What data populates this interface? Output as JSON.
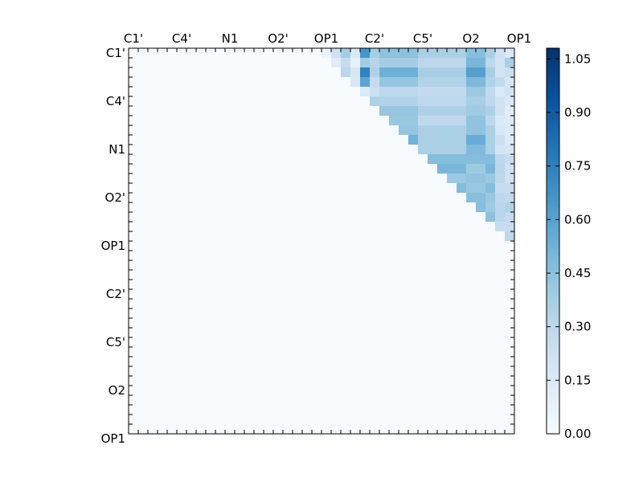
{
  "chart_data": {
    "type": "heatmap",
    "title": "",
    "xlabel": "",
    "ylabel": "",
    "n": 40,
    "tick_every": 5,
    "x_tick_labels": [
      "C1'",
      "C4'",
      "N1",
      "O2'",
      "OP1",
      "C2'",
      "C5'",
      "O2",
      "OP1"
    ],
    "y_tick_labels": [
      "C1'",
      "C4'",
      "N1",
      "O2'",
      "OP1",
      "C2'",
      "C5'",
      "O2",
      "OP1"
    ],
    "colormap": "Blues",
    "colors": {
      "low": "#f7fbff",
      "mid": "#6baed6",
      "high": "#08306b"
    },
    "colorbar": {
      "min": 0.0,
      "max": 1.08,
      "ticks": [
        "0.00",
        "0.15",
        "0.30",
        "0.45",
        "0.60",
        "0.75",
        "0.90",
        "1.05"
      ]
    },
    "matrix": [
      [
        0,
        0,
        0,
        0,
        0,
        0,
        0,
        0,
        0,
        0,
        0,
        0,
        0,
        0,
        0,
        0,
        0,
        0,
        0,
        0,
        0.07,
        0.22,
        0.38,
        0.16,
        0.66,
        0.38,
        0.45,
        0.45,
        0.45,
        0.45,
        0.36,
        0.36,
        0.36,
        0.36,
        0.36,
        0.46,
        0.46,
        0.36,
        0.22,
        0.15
      ],
      [
        0,
        0,
        0,
        0,
        0,
        0,
        0,
        0,
        0,
        0,
        0,
        0,
        0,
        0,
        0,
        0,
        0,
        0,
        0,
        0,
        0,
        0.12,
        0.26,
        0.08,
        0.39,
        0.32,
        0.38,
        0.38,
        0.38,
        0.38,
        0.3,
        0.3,
        0.3,
        0.3,
        0.3,
        0.5,
        0.5,
        0.3,
        0.2,
        0.36
      ],
      [
        0,
        0,
        0,
        0,
        0,
        0,
        0,
        0,
        0,
        0,
        0,
        0,
        0,
        0,
        0,
        0,
        0,
        0,
        0,
        0,
        0,
        0,
        0.31,
        0.18,
        0.74,
        0.35,
        0.53,
        0.53,
        0.53,
        0.53,
        0.37,
        0.37,
        0.37,
        0.37,
        0.37,
        0.61,
        0.61,
        0.37,
        0.2,
        0.24
      ],
      [
        0,
        0,
        0,
        0,
        0,
        0,
        0,
        0,
        0,
        0,
        0,
        0,
        0,
        0,
        0,
        0,
        0,
        0,
        0,
        0,
        0,
        0,
        0,
        0.17,
        0.59,
        0.27,
        0.43,
        0.43,
        0.43,
        0.43,
        0.34,
        0.34,
        0.34,
        0.34,
        0.34,
        0.49,
        0.49,
        0.34,
        0.28,
        0.18
      ],
      [
        0,
        0,
        0,
        0,
        0,
        0,
        0,
        0,
        0,
        0,
        0,
        0,
        0,
        0,
        0,
        0,
        0,
        0,
        0,
        0,
        0,
        0,
        0,
        0,
        0.14,
        0.23,
        0.3,
        0.3,
        0.3,
        0.3,
        0.28,
        0.28,
        0.28,
        0.28,
        0.28,
        0.41,
        0.41,
        0.28,
        0.15,
        0.2
      ],
      [
        0,
        0,
        0,
        0,
        0,
        0,
        0,
        0,
        0,
        0,
        0,
        0,
        0,
        0,
        0,
        0,
        0,
        0,
        0,
        0,
        0,
        0,
        0,
        0,
        0,
        0.35,
        0.34,
        0.34,
        0.34,
        0.34,
        0.3,
        0.3,
        0.3,
        0.3,
        0.3,
        0.37,
        0.37,
        0.3,
        0.21,
        0.16
      ],
      [
        0,
        0,
        0,
        0,
        0,
        0,
        0,
        0,
        0,
        0,
        0,
        0,
        0,
        0,
        0,
        0,
        0,
        0,
        0,
        0,
        0,
        0,
        0,
        0,
        0,
        0,
        0.43,
        0.43,
        0.43,
        0.43,
        0.35,
        0.35,
        0.35,
        0.35,
        0.35,
        0.4,
        0.4,
        0.35,
        0.22,
        0.12
      ],
      [
        0,
        0,
        0,
        0,
        0,
        0,
        0,
        0,
        0,
        0,
        0,
        0,
        0,
        0,
        0,
        0,
        0,
        0,
        0,
        0,
        0,
        0,
        0,
        0,
        0,
        0,
        0,
        0.42,
        0.42,
        0.42,
        0.29,
        0.29,
        0.29,
        0.29,
        0.29,
        0.44,
        0.44,
        0.29,
        0.16,
        0.14
      ],
      [
        0,
        0,
        0,
        0,
        0,
        0,
        0,
        0,
        0,
        0,
        0,
        0,
        0,
        0,
        0,
        0,
        0,
        0,
        0,
        0,
        0,
        0,
        0,
        0,
        0,
        0,
        0,
        0,
        0.43,
        0.43,
        0.36,
        0.36,
        0.36,
        0.36,
        0.36,
        0.44,
        0.44,
        0.36,
        0.18,
        0.14
      ],
      [
        0,
        0,
        0,
        0,
        0,
        0,
        0,
        0,
        0,
        0,
        0,
        0,
        0,
        0,
        0,
        0,
        0,
        0,
        0,
        0,
        0,
        0,
        0,
        0,
        0,
        0,
        0,
        0,
        0,
        0.52,
        0.36,
        0.36,
        0.36,
        0.36,
        0.36,
        0.55,
        0.55,
        0.36,
        0.24,
        0.14
      ],
      [
        0,
        0,
        0,
        0,
        0,
        0,
        0,
        0,
        0,
        0,
        0,
        0,
        0,
        0,
        0,
        0,
        0,
        0,
        0,
        0,
        0,
        0,
        0,
        0,
        0,
        0,
        0,
        0,
        0,
        0,
        0.36,
        0.36,
        0.36,
        0.36,
        0.36,
        0.48,
        0.48,
        0.36,
        0.19,
        0.18
      ],
      [
        0,
        0,
        0,
        0,
        0,
        0,
        0,
        0,
        0,
        0,
        0,
        0,
        0,
        0,
        0,
        0,
        0,
        0,
        0,
        0,
        0,
        0,
        0,
        0,
        0,
        0,
        0,
        0,
        0,
        0,
        0,
        0.47,
        0.47,
        0.47,
        0.47,
        0.47,
        0.47,
        0.47,
        0.3,
        0.26
      ],
      [
        0,
        0,
        0,
        0,
        0,
        0,
        0,
        0,
        0,
        0,
        0,
        0,
        0,
        0,
        0,
        0,
        0,
        0,
        0,
        0,
        0,
        0,
        0,
        0,
        0,
        0,
        0,
        0,
        0,
        0,
        0,
        0,
        0.5,
        0.5,
        0.5,
        0.4,
        0.4,
        0.5,
        0.31,
        0.21
      ],
      [
        0,
        0,
        0,
        0,
        0,
        0,
        0,
        0,
        0,
        0,
        0,
        0,
        0,
        0,
        0,
        0,
        0,
        0,
        0,
        0,
        0,
        0,
        0,
        0,
        0,
        0,
        0,
        0,
        0,
        0,
        0,
        0,
        0,
        0.41,
        0.41,
        0.44,
        0.44,
        0.41,
        0.3,
        0.2
      ],
      [
        0,
        0,
        0,
        0,
        0,
        0,
        0,
        0,
        0,
        0,
        0,
        0,
        0,
        0,
        0,
        0,
        0,
        0,
        0,
        0,
        0,
        0,
        0,
        0,
        0,
        0,
        0,
        0,
        0,
        0,
        0,
        0,
        0,
        0,
        0.47,
        0.42,
        0.42,
        0.47,
        0.26,
        0.26
      ],
      [
        0,
        0,
        0,
        0,
        0,
        0,
        0,
        0,
        0,
        0,
        0,
        0,
        0,
        0,
        0,
        0,
        0,
        0,
        0,
        0,
        0,
        0,
        0,
        0,
        0,
        0,
        0,
        0,
        0,
        0,
        0,
        0,
        0,
        0,
        0,
        0.46,
        0.46,
        0.41,
        0.3,
        0.28
      ],
      [
        0,
        0,
        0,
        0,
        0,
        0,
        0,
        0,
        0,
        0,
        0,
        0,
        0,
        0,
        0,
        0,
        0,
        0,
        0,
        0,
        0,
        0,
        0,
        0,
        0,
        0,
        0,
        0,
        0,
        0,
        0,
        0,
        0,
        0,
        0,
        0,
        0.47,
        0.4,
        0.31,
        0.34
      ],
      [
        0,
        0,
        0,
        0,
        0,
        0,
        0,
        0,
        0,
        0,
        0,
        0,
        0,
        0,
        0,
        0,
        0,
        0,
        0,
        0,
        0,
        0,
        0,
        0,
        0,
        0,
        0,
        0,
        0,
        0,
        0,
        0,
        0,
        0,
        0,
        0,
        0,
        0.45,
        0.31,
        0.27
      ],
      [
        0,
        0,
        0,
        0,
        0,
        0,
        0,
        0,
        0,
        0,
        0,
        0,
        0,
        0,
        0,
        0,
        0,
        0,
        0,
        0,
        0,
        0,
        0,
        0,
        0,
        0,
        0,
        0,
        0,
        0,
        0,
        0,
        0,
        0,
        0,
        0,
        0,
        0,
        0.26,
        0.25
      ],
      [
        0,
        0,
        0,
        0,
        0,
        0,
        0,
        0,
        0,
        0,
        0,
        0,
        0,
        0,
        0,
        0,
        0,
        0,
        0,
        0,
        0,
        0,
        0,
        0,
        0,
        0,
        0,
        0,
        0,
        0,
        0,
        0,
        0,
        0,
        0,
        0,
        0,
        0,
        0,
        0.3
      ],
      [
        0,
        0,
        0,
        0,
        0,
        0,
        0,
        0,
        0,
        0,
        0,
        0,
        0,
        0,
        0,
        0,
        0,
        0,
        0,
        0,
        0,
        0,
        0,
        0,
        0,
        0,
        0,
        0,
        0,
        0,
        0,
        0,
        0,
        0,
        0,
        0,
        0,
        0,
        0,
        0
      ],
      [
        0,
        0,
        0,
        0,
        0,
        0,
        0,
        0,
        0,
        0,
        0,
        0,
        0,
        0,
        0,
        0,
        0,
        0,
        0,
        0,
        0,
        0,
        0,
        0,
        0,
        0,
        0,
        0,
        0,
        0,
        0,
        0,
        0,
        0,
        0,
        0,
        0,
        0,
        0,
        0
      ],
      [
        0,
        0,
        0,
        0,
        0,
        0,
        0,
        0,
        0,
        0,
        0,
        0,
        0,
        0,
        0,
        0,
        0,
        0,
        0,
        0,
        0,
        0,
        0,
        0,
        0,
        0,
        0,
        0,
        0,
        0,
        0,
        0,
        0,
        0,
        0,
        0,
        0,
        0,
        0,
        0
      ],
      [
        0,
        0,
        0,
        0,
        0,
        0,
        0,
        0,
        0,
        0,
        0,
        0,
        0,
        0,
        0,
        0,
        0,
        0,
        0,
        0,
        0,
        0,
        0,
        0,
        0,
        0,
        0,
        0,
        0,
        0,
        0,
        0,
        0,
        0,
        0,
        0,
        0,
        0,
        0,
        0
      ],
      [
        0,
        0,
        0,
        0,
        0,
        0,
        0,
        0,
        0,
        0,
        0,
        0,
        0,
        0,
        0,
        0,
        0,
        0,
        0,
        0,
        0,
        0,
        0,
        0,
        0,
        0,
        0,
        0,
        0,
        0,
        0,
        0,
        0,
        0,
        0,
        0,
        0,
        0,
        0,
        0
      ],
      [
        0,
        0,
        0,
        0,
        0,
        0,
        0,
        0,
        0,
        0,
        0,
        0,
        0,
        0,
        0,
        0,
        0,
        0,
        0,
        0,
        0,
        0,
        0,
        0,
        0,
        0,
        0,
        0,
        0,
        0,
        0,
        0,
        0,
        0,
        0,
        0,
        0,
        0,
        0,
        0
      ],
      [
        0,
        0,
        0,
        0,
        0,
        0,
        0,
        0,
        0,
        0,
        0,
        0,
        0,
        0,
        0,
        0,
        0,
        0,
        0,
        0,
        0,
        0,
        0,
        0,
        0,
        0,
        0,
        0,
        0,
        0,
        0,
        0,
        0,
        0,
        0,
        0,
        0,
        0,
        0,
        0
      ],
      [
        0,
        0,
        0,
        0,
        0,
        0,
        0,
        0,
        0,
        0,
        0,
        0,
        0,
        0,
        0,
        0,
        0,
        0,
        0,
        0,
        0,
        0,
        0,
        0,
        0,
        0,
        0,
        0,
        0,
        0,
        0,
        0,
        0,
        0,
        0,
        0,
        0,
        0,
        0,
        0
      ],
      [
        0,
        0,
        0,
        0,
        0,
        0,
        0,
        0,
        0,
        0,
        0,
        0,
        0,
        0,
        0,
        0,
        0,
        0,
        0,
        0,
        0,
        0,
        0,
        0,
        0,
        0,
        0,
        0,
        0,
        0,
        0,
        0,
        0,
        0,
        0,
        0,
        0,
        0,
        0,
        0
      ],
      [
        0,
        0,
        0,
        0,
        0,
        0,
        0,
        0,
        0,
        0,
        0,
        0,
        0,
        0,
        0,
        0,
        0,
        0,
        0,
        0,
        0,
        0,
        0,
        0,
        0,
        0,
        0,
        0,
        0,
        0,
        0,
        0,
        0,
        0,
        0,
        0,
        0,
        0,
        0,
        0
      ],
      [
        0,
        0,
        0,
        0,
        0,
        0,
        0,
        0,
        0,
        0,
        0,
        0,
        0,
        0,
        0,
        0,
        0,
        0,
        0,
        0,
        0,
        0,
        0,
        0,
        0,
        0,
        0,
        0,
        0,
        0,
        0,
        0,
        0,
        0,
        0,
        0,
        0,
        0,
        0,
        0
      ],
      [
        0,
        0,
        0,
        0,
        0,
        0,
        0,
        0,
        0,
        0,
        0,
        0,
        0,
        0,
        0,
        0,
        0,
        0,
        0,
        0,
        0,
        0,
        0,
        0,
        0,
        0,
        0,
        0,
        0,
        0,
        0,
        0,
        0,
        0,
        0,
        0,
        0,
        0,
        0,
        0
      ],
      [
        0,
        0,
        0,
        0,
        0,
        0,
        0,
        0,
        0,
        0,
        0,
        0,
        0,
        0,
        0,
        0,
        0,
        0,
        0,
        0,
        0,
        0,
        0,
        0,
        0,
        0,
        0,
        0,
        0,
        0,
        0,
        0,
        0,
        0,
        0,
        0,
        0,
        0,
        0,
        0
      ],
      [
        0,
        0,
        0,
        0,
        0,
        0,
        0,
        0,
        0,
        0,
        0,
        0,
        0,
        0,
        0,
        0,
        0,
        0,
        0,
        0,
        0,
        0,
        0,
        0,
        0,
        0,
        0,
        0,
        0,
        0,
        0,
        0,
        0,
        0,
        0,
        0,
        0,
        0,
        0,
        0
      ],
      [
        0,
        0,
        0,
        0,
        0,
        0,
        0,
        0,
        0,
        0,
        0,
        0,
        0,
        0,
        0,
        0,
        0,
        0,
        0,
        0,
        0,
        0,
        0,
        0,
        0,
        0,
        0,
        0,
        0,
        0,
        0,
        0,
        0,
        0,
        0,
        0,
        0,
        0,
        0,
        0
      ],
      [
        0,
        0,
        0,
        0,
        0,
        0,
        0,
        0,
        0,
        0,
        0,
        0,
        0,
        0,
        0,
        0,
        0,
        0,
        0,
        0,
        0,
        0,
        0,
        0,
        0,
        0,
        0,
        0,
        0,
        0,
        0,
        0,
        0,
        0,
        0,
        0,
        0,
        0,
        0,
        0
      ],
      [
        0,
        0,
        0,
        0,
        0,
        0,
        0,
        0,
        0,
        0,
        0,
        0,
        0,
        0,
        0,
        0,
        0,
        0,
        0,
        0,
        0,
        0,
        0,
        0,
        0,
        0,
        0,
        0,
        0,
        0,
        0,
        0,
        0,
        0,
        0,
        0,
        0,
        0,
        0,
        0
      ],
      [
        0,
        0,
        0,
        0,
        0,
        0,
        0,
        0,
        0,
        0,
        0,
        0,
        0,
        0,
        0,
        0,
        0,
        0,
        0,
        0,
        0,
        0,
        0,
        0,
        0,
        0,
        0,
        0,
        0,
        0,
        0,
        0,
        0,
        0,
        0,
        0,
        0,
        0,
        0,
        0
      ],
      [
        0,
        0,
        0,
        0,
        0,
        0,
        0,
        0,
        0,
        0,
        0,
        0,
        0,
        0,
        0,
        0,
        0,
        0,
        0,
        0,
        0,
        0,
        0,
        0,
        0,
        0,
        0,
        0,
        0,
        0,
        0,
        0,
        0,
        0,
        0,
        0,
        0,
        0,
        0,
        0
      ],
      [
        0,
        0,
        0,
        0,
        0,
        0,
        0,
        0,
        0,
        0,
        0,
        0,
        0,
        0,
        0,
        0,
        0,
        0,
        0,
        0,
        0,
        0,
        0,
        0,
        0,
        0,
        0,
        0,
        0,
        0,
        0,
        0,
        0,
        0,
        0,
        0,
        0,
        0,
        0,
        0
      ]
    ]
  }
}
